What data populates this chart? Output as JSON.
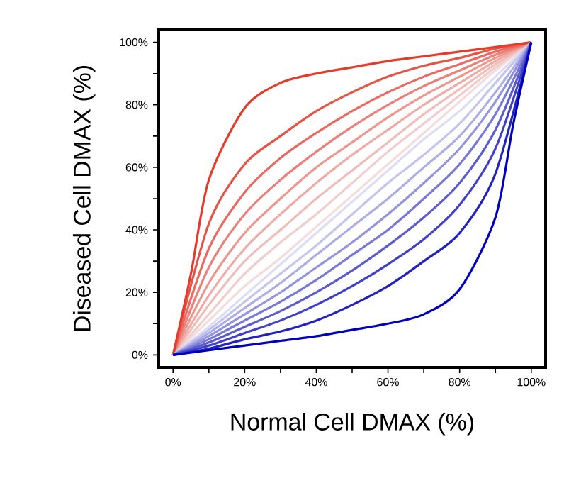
{
  "chart_data": {
    "type": "line",
    "xlabel": "Normal Cell DMAX (%)",
    "ylabel": "Diseased Cell DMAX (%)",
    "xlim": [
      -4,
      104
    ],
    "ylim": [
      -4,
      104
    ],
    "xticks": [
      {
        "value": 0,
        "label": "0%"
      },
      {
        "value": 10,
        "label": null
      },
      {
        "value": 20,
        "label": "20%"
      },
      {
        "value": 30,
        "label": null
      },
      {
        "value": 40,
        "label": "40%"
      },
      {
        "value": 50,
        "label": null
      },
      {
        "value": 60,
        "label": "60%"
      },
      {
        "value": 70,
        "label": null
      },
      {
        "value": 80,
        "label": "80%"
      },
      {
        "value": 90,
        "label": null
      },
      {
        "value": 100,
        "label": "100%"
      }
    ],
    "yticks": [
      {
        "value": 0,
        "label": "0%"
      },
      {
        "value": 10,
        "label": null
      },
      {
        "value": 20,
        "label": "20%"
      },
      {
        "value": 30,
        "label": null
      },
      {
        "value": 40,
        "label": "40%"
      },
      {
        "value": 50,
        "label": null
      },
      {
        "value": 60,
        "label": "60%"
      },
      {
        "value": 70,
        "label": null
      },
      {
        "value": 80,
        "label": "80%"
      },
      {
        "value": 90,
        "label": null
      },
      {
        "value": 100,
        "label": "100%"
      }
    ],
    "x": [
      0,
      10,
      20,
      30,
      40,
      50,
      60,
      70,
      80,
      90,
      100
    ],
    "series": [
      {
        "color": "#f4dcdc",
        "values": [
          0,
          11,
          22,
          31,
          41,
          51,
          61,
          71,
          81,
          91,
          100
        ]
      },
      {
        "color": "#f2cccc",
        "values": [
          0,
          13,
          26,
          36,
          45,
          55,
          65,
          74,
          83,
          92,
          100
        ]
      },
      {
        "color": "#f0bcb8",
        "values": [
          0,
          16,
          30,
          40,
          50,
          59,
          68,
          77,
          85,
          93,
          100
        ]
      },
      {
        "color": "#eeaaa4",
        "values": [
          0,
          19,
          34,
          45,
          55,
          64,
          72,
          80,
          87,
          94,
          100
        ]
      },
      {
        "color": "#ec968e",
        "values": [
          0,
          23,
          39,
          50,
          60,
          68,
          76,
          83,
          89,
          95,
          100
        ]
      },
      {
        "color": "#ea8078",
        "values": [
          0,
          28,
          45,
          56,
          65,
          73,
          80,
          86,
          91,
          96,
          100
        ]
      },
      {
        "color": "#e86a60",
        "values": [
          0,
          34,
          52,
          63,
          71,
          78,
          84,
          89,
          93,
          97,
          100
        ]
      },
      {
        "color": "#e65448",
        "values": [
          0,
          42,
          61,
          70,
          78,
          84,
          89,
          92.5,
          95,
          98,
          100
        ]
      },
      {
        "color": "#e43c2c",
        "x": [
          0,
          5,
          10,
          20,
          30,
          40,
          50,
          60,
          70,
          80,
          90,
          100
        ],
        "values": [
          0,
          26,
          56,
          79,
          87,
          90,
          92,
          94,
          95.5,
          97,
          98.5,
          100
        ]
      },
      {
        "color": "#dcdcf4",
        "values": [
          0,
          9,
          19,
          29,
          39,
          49,
          59,
          69,
          78,
          89,
          100
        ]
      },
      {
        "color": "#c4c4ee",
        "values": [
          0,
          8,
          17,
          26,
          35,
          45,
          55,
          64,
          74,
          87,
          100
        ]
      },
      {
        "color": "#acace6",
        "values": [
          0,
          7,
          15,
          23,
          32,
          41,
          50,
          60,
          70,
          84,
          100
        ]
      },
      {
        "color": "#9494de",
        "values": [
          0,
          6,
          13,
          20,
          28,
          36,
          45,
          55,
          66,
          81,
          100
        ]
      },
      {
        "color": "#7878d6",
        "values": [
          0,
          5,
          11,
          17,
          24,
          32,
          40,
          50,
          61,
          77,
          100
        ]
      },
      {
        "color": "#5c5cce",
        "values": [
          0,
          4,
          9,
          14,
          20,
          27,
          35,
          44,
          55,
          72,
          100
        ]
      },
      {
        "color": "#4040c8",
        "values": [
          0,
          3,
          7,
          11,
          16,
          22,
          29,
          37,
          48,
          66,
          100
        ]
      },
      {
        "color": "#2222c2",
        "values": [
          0,
          2,
          5,
          7.5,
          11,
          16,
          22,
          30,
          39,
          58,
          100
        ]
      },
      {
        "color": "#0000bc",
        "x": [
          0,
          10,
          20,
          30,
          40,
          50,
          60,
          70,
          80,
          90,
          95,
          100
        ],
        "values": [
          0,
          1.5,
          3,
          4.5,
          6,
          8,
          10,
          13,
          21,
          44,
          74,
          100
        ]
      }
    ]
  }
}
